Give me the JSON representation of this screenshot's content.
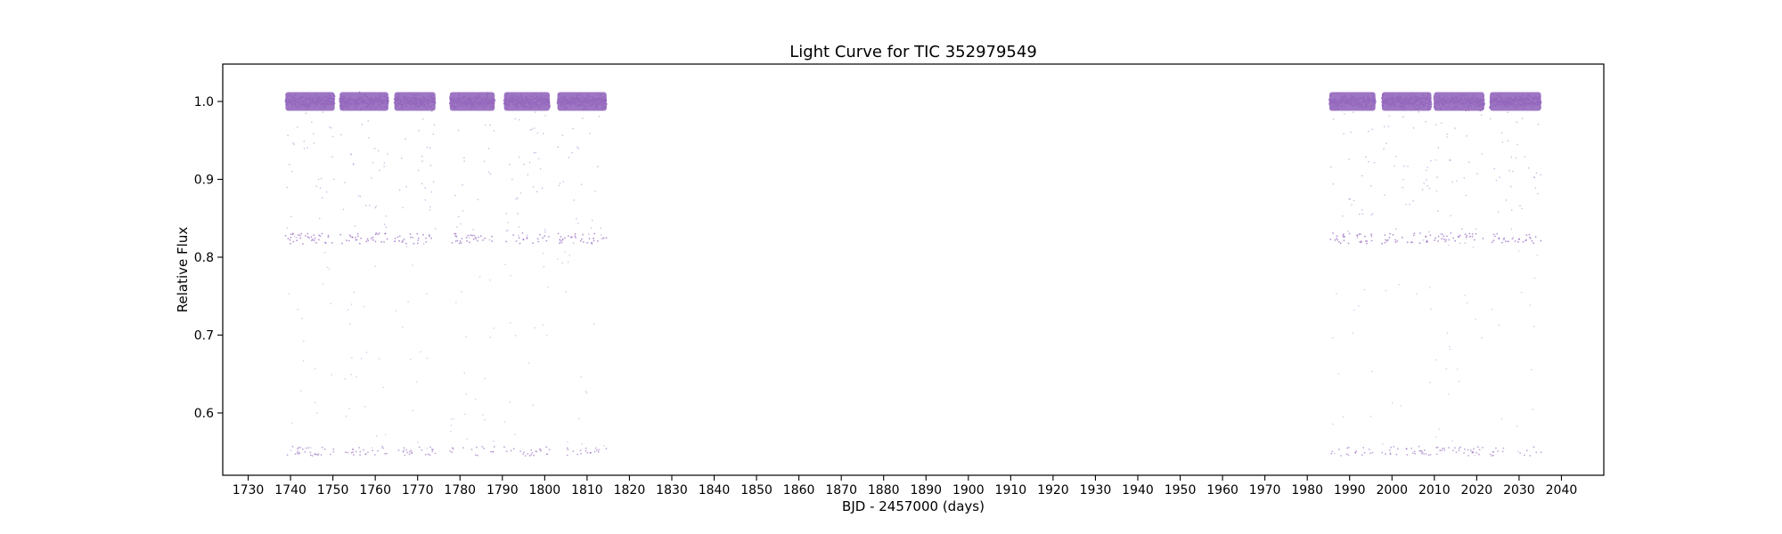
{
  "chart_data": {
    "type": "scatter",
    "title": "Light Curve for TIC 352979549",
    "xlabel": "BJD - 2457000 (days)",
    "ylabel": "Relative Flux",
    "xlim": [
      1724,
      2050
    ],
    "ylim": [
      0.52,
      1.048
    ],
    "x_ticks": [
      1730,
      1740,
      1750,
      1760,
      1770,
      1780,
      1790,
      1800,
      1810,
      1820,
      1830,
      1840,
      1850,
      1860,
      1870,
      1880,
      1890,
      1900,
      1910,
      1920,
      1930,
      1940,
      1950,
      1960,
      1970,
      1980,
      1990,
      2000,
      2010,
      2020,
      2030,
      2040
    ],
    "y_ticks": [
      0.6,
      0.7,
      0.8,
      0.9,
      1.0
    ],
    "grid": false,
    "legend": "none",
    "marker_color": "#9467bd",
    "series": [
      {
        "segments": [
          {
            "x_start": 1738.8,
            "x_end": 1750.4
          },
          {
            "x_start": 1751.6,
            "x_end": 1763.1
          },
          {
            "x_start": 1764.5,
            "x_end": 1774.2
          },
          {
            "x_start": 1777.6,
            "x_end": 1788.2
          },
          {
            "x_start": 1790.4,
            "x_end": 1801.2
          },
          {
            "x_start": 1803.0,
            "x_end": 1814.6
          },
          {
            "x_start": 1985.2,
            "x_end": 1996.1
          },
          {
            "x_start": 1997.6,
            "x_end": 2009.3
          },
          {
            "x_start": 2009.9,
            "x_end": 2021.8
          },
          {
            "x_start": 2023.1,
            "x_end": 2035.2
          }
        ],
        "baseline_flux": 1.0,
        "baseline_scatter": 0.012,
        "secondary_eclipse_flux": 0.817,
        "primary_eclipse_flux": 0.545
      }
    ]
  }
}
